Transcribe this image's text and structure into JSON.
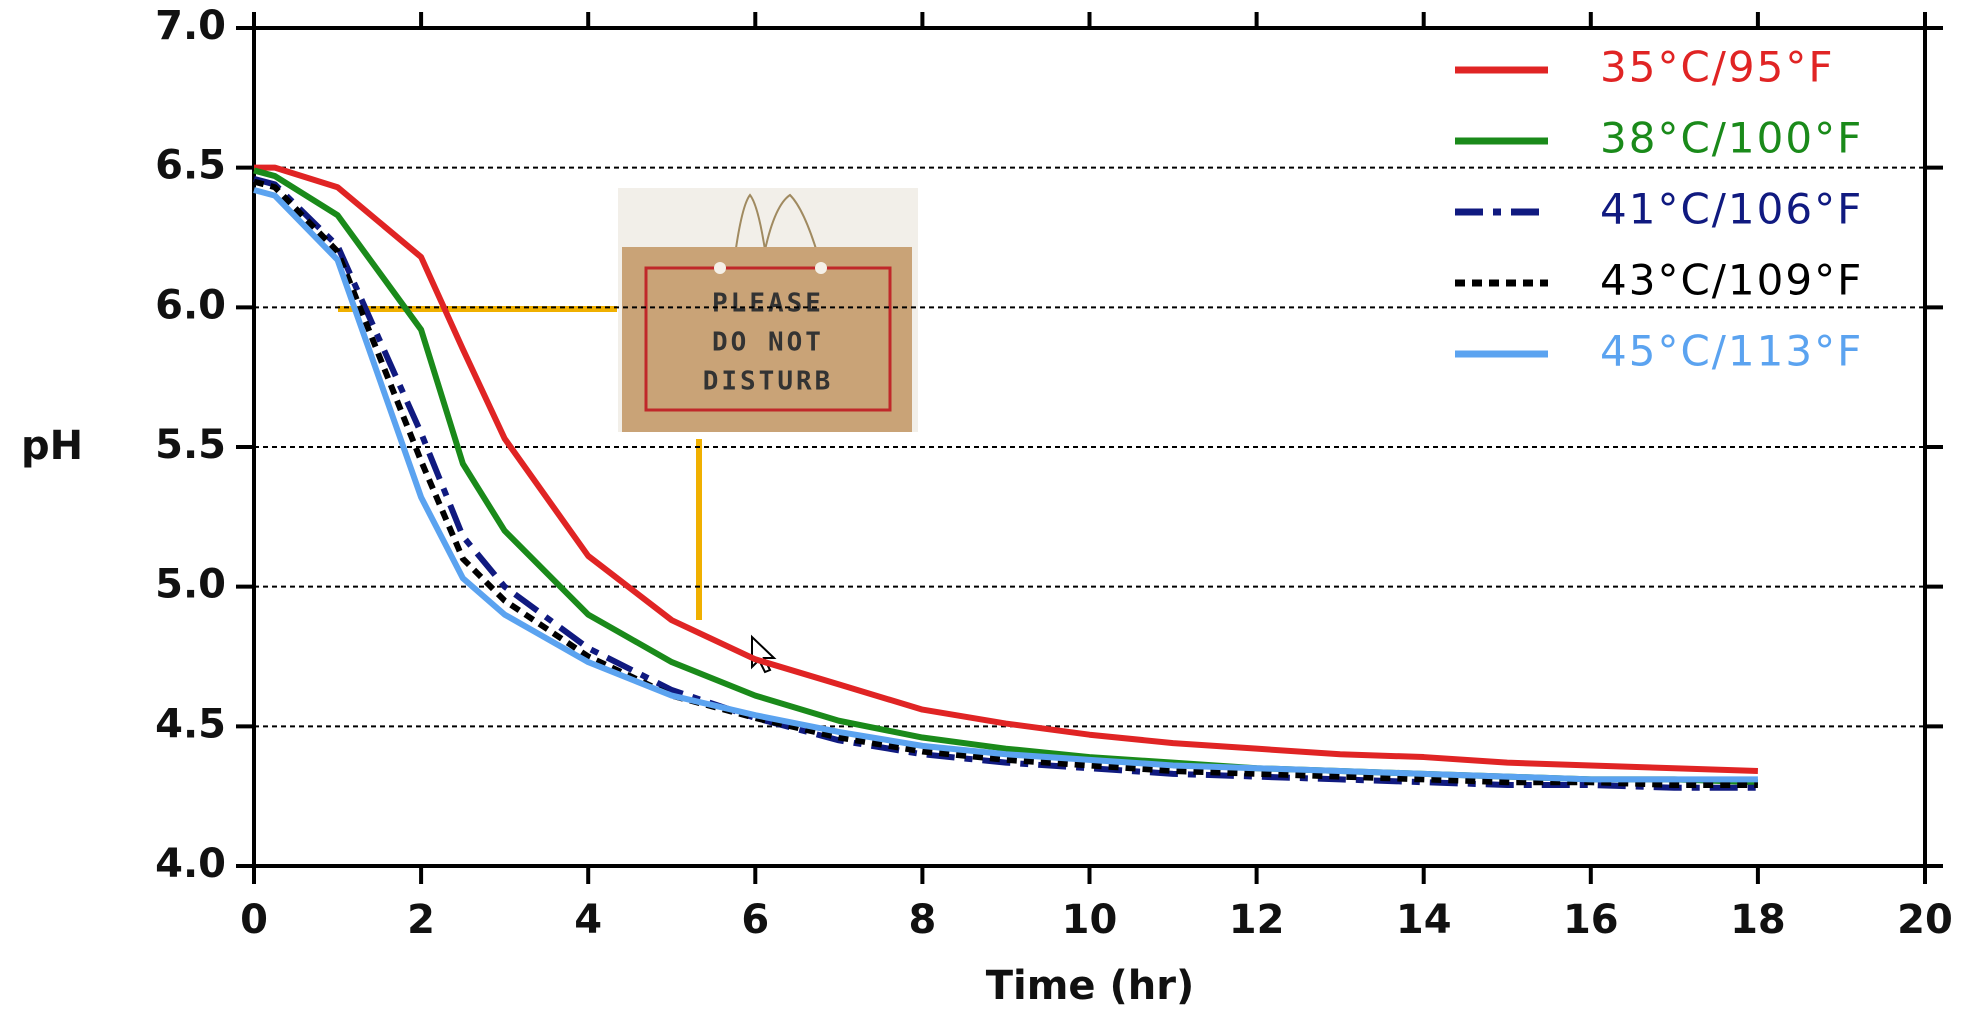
{
  "chart_data": {
    "type": "line",
    "xlabel": "Time (hr)",
    "ylabel": "pH",
    "x": [
      0,
      0.25,
      1,
      2,
      2.5,
      3,
      4,
      5,
      6,
      7,
      8,
      9,
      10,
      11,
      12,
      13,
      14,
      15,
      16,
      17,
      18
    ],
    "series": [
      {
        "name": "35°C/95°F",
        "color": "#e02424",
        "dash": "solid",
        "values": [
          6.5,
          6.5,
          6.43,
          6.18,
          5.85,
          5.53,
          5.11,
          4.88,
          4.74,
          4.65,
          4.56,
          4.51,
          4.47,
          4.44,
          4.42,
          4.4,
          4.39,
          4.37,
          4.36,
          4.35,
          4.34
        ]
      },
      {
        "name": "38°C/100°F",
        "color": "#1a8a1a",
        "dash": "solid",
        "values": [
          6.49,
          6.47,
          6.33,
          5.92,
          5.44,
          5.2,
          4.9,
          4.73,
          4.61,
          4.52,
          4.46,
          4.42,
          4.39,
          4.37,
          4.35,
          4.34,
          4.33,
          4.32,
          4.31,
          4.31,
          4.3
        ]
      },
      {
        "name": "41°C/106°F",
        "color": "#101a80",
        "dash": "longdash",
        "values": [
          6.46,
          6.44,
          6.22,
          5.55,
          5.18,
          5.0,
          4.78,
          4.63,
          4.53,
          4.45,
          4.4,
          4.37,
          4.35,
          4.33,
          4.32,
          4.31,
          4.3,
          4.29,
          4.29,
          4.28,
          4.28
        ]
      },
      {
        "name": "43°C/109°F",
        "color": "#000000",
        "dash": "shortdash",
        "values": [
          6.45,
          6.43,
          6.2,
          5.45,
          5.1,
          4.95,
          4.75,
          4.61,
          4.53,
          4.46,
          4.41,
          4.38,
          4.36,
          4.34,
          4.33,
          4.32,
          4.31,
          4.3,
          4.3,
          4.29,
          4.29
        ]
      },
      {
        "name": "45°C/113°F",
        "color": "#5ba3f0",
        "dash": "solid",
        "values": [
          6.42,
          6.4,
          6.17,
          5.32,
          5.03,
          4.9,
          4.73,
          4.61,
          4.54,
          4.48,
          4.43,
          4.4,
          4.38,
          4.36,
          4.35,
          4.34,
          4.33,
          4.32,
          4.31,
          4.31,
          4.31
        ]
      }
    ],
    "xlim": [
      0,
      20
    ],
    "xticks": [
      0,
      2,
      4,
      6,
      8,
      10,
      12,
      14,
      16,
      18,
      20
    ],
    "ylim": [
      4,
      7
    ],
    "yticks": [
      {
        "value": 4,
        "label": "4.0"
      },
      {
        "value": 4.5,
        "label": "4.5"
      },
      {
        "value": 5,
        "label": "5.0"
      },
      {
        "value": 5.5,
        "label": "5.5"
      },
      {
        "value": 6,
        "label": "6.0"
      },
      {
        "value": 6.5,
        "label": "6.5"
      },
      {
        "value": 7,
        "label": "7.0"
      }
    ],
    "grid": true,
    "legend": "upper right"
  },
  "sign": {
    "lines": [
      "PLEASE",
      "DO NOT",
      "DISTURB"
    ]
  }
}
